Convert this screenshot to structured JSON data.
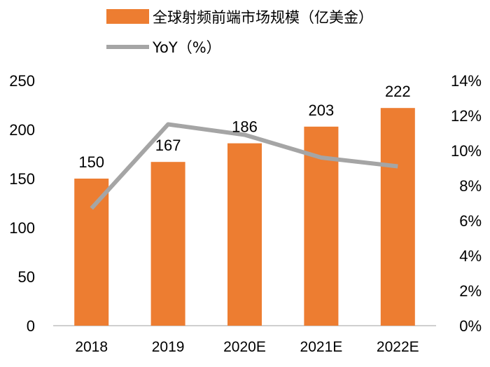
{
  "chart_data": {
    "type": "bar",
    "title": "",
    "categories": [
      "2018",
      "2019",
      "2020E",
      "2021E",
      "2022E"
    ],
    "series": [
      {
        "name": "全球射频前端市场规模（亿美金）",
        "kind": "bar",
        "axis": "left",
        "values": [
          150,
          167,
          186,
          203,
          222
        ],
        "labels": [
          "150",
          "167",
          "186",
          "203",
          "222"
        ],
        "color": "#ED7D31"
      },
      {
        "name": "YoY（%）",
        "kind": "line",
        "axis": "right",
        "values": [
          6.7,
          11.5,
          10.9,
          9.6,
          9.1
        ],
        "color": "#A5A5A5"
      }
    ],
    "y_left": {
      "min": 0,
      "max": 250,
      "ticks": [
        "0",
        "50",
        "100",
        "150",
        "200",
        "250"
      ]
    },
    "y_right": {
      "min": 0,
      "max": 14,
      "ticks": [
        "0%",
        "2%",
        "4%",
        "6%",
        "8%",
        "10%",
        "12%",
        "14%"
      ]
    },
    "grid": false,
    "legend_position": "top-left"
  }
}
